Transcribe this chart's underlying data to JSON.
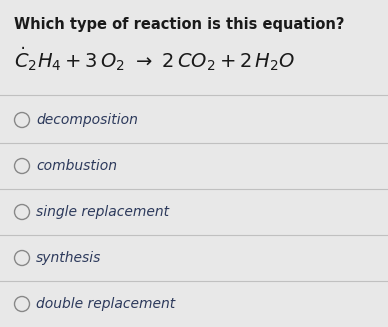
{
  "title": "Which type of reaction is this equation?",
  "options": [
    "decomposition",
    "combustion",
    "single replacement",
    "synthesis",
    "double replacement"
  ],
  "background_color": "#e8e8e8",
  "text_color": "#2d3a5c",
  "title_color": "#1a1a1a",
  "title_fontsize": 10.5,
  "equation_fontsize": 14,
  "option_fontsize": 10,
  "divider_color": "#c0c0c0",
  "circle_color": "#888888",
  "figsize": [
    3.88,
    3.27
  ],
  "dpi": 100
}
